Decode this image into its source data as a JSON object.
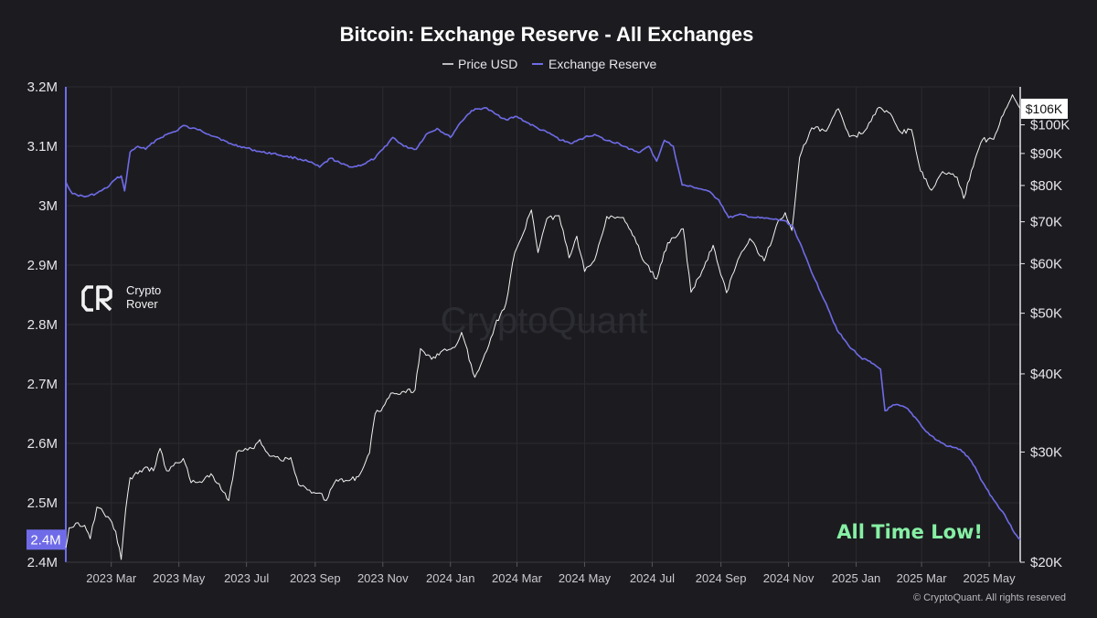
{
  "colors": {
    "background": "#1c1c20",
    "reserve": "#6f6be8",
    "price": "#f2f2f2",
    "annotation": "#86f0a4",
    "grid": "#2a2a30"
  },
  "brand": {
    "name_line1": "Crypto",
    "name_line2": "Rover",
    "icon": "cr-logo-icon"
  },
  "watermark": "CryptoQuant",
  "copyright": "© CryptoQuant. All rights reserved",
  "annotation": "All Time Low!",
  "chart_data": {
    "type": "line",
    "title": "Bitcoin: Exchange Reserve - All Exchanges",
    "legend": {
      "position": "top-center",
      "entries": [
        "Price USD",
        "Exchange Reserve"
      ]
    },
    "grid": true,
    "x_ticks": [
      "2023 Mar",
      "2023 May",
      "2023 Jul",
      "2023 Sep",
      "2023 Nov",
      "2024 Jan",
      "2024 Mar",
      "2024 May",
      "2024 Jul",
      "2024 Sep",
      "2024 Nov",
      "2025 Jan",
      "2025 Mar",
      "2025 May"
    ],
    "x_range": [
      "2023-01-19",
      "2025-05-29"
    ],
    "y_left": {
      "label": "",
      "range": [
        2400000,
        3200000
      ],
      "ticks": [
        {
          "value": 2400000,
          "label": "2.4M"
        },
        {
          "value": 2500000,
          "label": "2.5M"
        },
        {
          "value": 2600000,
          "label": "2.6M"
        },
        {
          "value": 2700000,
          "label": "2.7M"
        },
        {
          "value": 2800000,
          "label": "2.8M"
        },
        {
          "value": 2900000,
          "label": "2.9M"
        },
        {
          "value": 3000000,
          "label": "3M"
        },
        {
          "value": 3100000,
          "label": "3.1M"
        },
        {
          "value": 3200000,
          "label": "3.2M"
        }
      ],
      "current_badge": "2.4M"
    },
    "y_right": {
      "label": "",
      "scale": "log",
      "range": [
        20000,
        115000
      ],
      "ticks": [
        {
          "value": 20000,
          "label": "$20K"
        },
        {
          "value": 30000,
          "label": "$30K"
        },
        {
          "value": 40000,
          "label": "$40K"
        },
        {
          "value": 50000,
          "label": "$50K"
        },
        {
          "value": 60000,
          "label": "$60K"
        },
        {
          "value": 70000,
          "label": "$70K"
        },
        {
          "value": 80000,
          "label": "$80K"
        },
        {
          "value": 90000,
          "label": "$90K"
        },
        {
          "value": 100000,
          "label": "$100K"
        }
      ],
      "current_badge": "$106K"
    },
    "series": [
      {
        "name": "Exchange Reserve",
        "axis": "left",
        "points": [
          [
            "2023-01-19",
            3040000
          ],
          [
            "2023-01-25",
            3020000
          ],
          [
            "2023-02-05",
            3015000
          ],
          [
            "2023-02-15",
            3020000
          ],
          [
            "2023-02-25",
            3030000
          ],
          [
            "2023-03-05",
            3045000
          ],
          [
            "2023-03-10",
            3050000
          ],
          [
            "2023-03-13",
            3025000
          ],
          [
            "2023-03-18",
            3090000
          ],
          [
            "2023-03-25",
            3100000
          ],
          [
            "2023-04-01",
            3095000
          ],
          [
            "2023-04-10",
            3110000
          ],
          [
            "2023-04-20",
            3120000
          ],
          [
            "2023-04-28",
            3125000
          ],
          [
            "2023-05-05",
            3135000
          ],
          [
            "2023-05-12",
            3130000
          ],
          [
            "2023-05-20",
            3128000
          ],
          [
            "2023-05-28",
            3120000
          ],
          [
            "2023-06-05",
            3115000
          ],
          [
            "2023-06-15",
            3105000
          ],
          [
            "2023-06-25",
            3100000
          ],
          [
            "2023-07-05",
            3095000
          ],
          [
            "2023-07-15",
            3090000
          ],
          [
            "2023-07-25",
            3088000
          ],
          [
            "2023-08-05",
            3083000
          ],
          [
            "2023-08-15",
            3080000
          ],
          [
            "2023-08-25",
            3075000
          ],
          [
            "2023-09-05",
            3065000
          ],
          [
            "2023-09-15",
            3080000
          ],
          [
            "2023-09-25",
            3070000
          ],
          [
            "2023-10-05",
            3065000
          ],
          [
            "2023-10-15",
            3070000
          ],
          [
            "2023-10-25",
            3080000
          ],
          [
            "2023-11-01",
            3095000
          ],
          [
            "2023-11-10",
            3115000
          ],
          [
            "2023-11-20",
            3100000
          ],
          [
            "2023-12-01",
            3095000
          ],
          [
            "2023-12-10",
            3120000
          ],
          [
            "2023-12-20",
            3130000
          ],
          [
            "2024-01-01",
            3115000
          ],
          [
            "2024-01-10",
            3140000
          ],
          [
            "2024-01-20",
            3160000
          ],
          [
            "2024-02-01",
            3165000
          ],
          [
            "2024-02-10",
            3155000
          ],
          [
            "2024-02-20",
            3145000
          ],
          [
            "2024-03-01",
            3150000
          ],
          [
            "2024-03-10",
            3140000
          ],
          [
            "2024-03-20",
            3130000
          ],
          [
            "2024-04-01",
            3120000
          ],
          [
            "2024-04-10",
            3110000
          ],
          [
            "2024-04-20",
            3105000
          ],
          [
            "2024-05-01",
            3115000
          ],
          [
            "2024-05-10",
            3120000
          ],
          [
            "2024-05-20",
            3110000
          ],
          [
            "2024-06-01",
            3105000
          ],
          [
            "2024-06-10",
            3095000
          ],
          [
            "2024-06-20",
            3090000
          ],
          [
            "2024-06-28",
            3100000
          ],
          [
            "2024-07-05",
            3075000
          ],
          [
            "2024-07-12",
            3110000
          ],
          [
            "2024-07-20",
            3100000
          ],
          [
            "2024-07-28",
            3035000
          ],
          [
            "2024-08-10",
            3030000
          ],
          [
            "2024-08-20",
            3025000
          ],
          [
            "2024-08-30",
            3010000
          ],
          [
            "2024-09-08",
            2980000
          ],
          [
            "2024-09-20",
            2985000
          ],
          [
            "2024-10-01",
            2980000
          ],
          [
            "2024-10-15",
            2978000
          ],
          [
            "2024-10-28",
            2975000
          ],
          [
            "2024-11-05",
            2965000
          ],
          [
            "2024-11-15",
            2920000
          ],
          [
            "2024-11-25",
            2875000
          ],
          [
            "2024-12-05",
            2835000
          ],
          [
            "2024-12-15",
            2790000
          ],
          [
            "2024-12-25",
            2765000
          ],
          [
            "2025-01-05",
            2745000
          ],
          [
            "2025-01-15",
            2735000
          ],
          [
            "2025-01-23",
            2725000
          ],
          [
            "2025-01-27",
            2655000
          ],
          [
            "2025-02-05",
            2665000
          ],
          [
            "2025-02-15",
            2660000
          ],
          [
            "2025-02-25",
            2640000
          ],
          [
            "2025-03-05",
            2620000
          ],
          [
            "2025-03-15",
            2605000
          ],
          [
            "2025-03-25",
            2595000
          ],
          [
            "2025-04-05",
            2590000
          ],
          [
            "2025-04-15",
            2570000
          ],
          [
            "2025-04-25",
            2535000
          ],
          [
            "2025-05-05",
            2505000
          ],
          [
            "2025-05-15",
            2480000
          ],
          [
            "2025-05-22",
            2455000
          ],
          [
            "2025-05-29",
            2438000
          ]
        ]
      },
      {
        "name": "Price USD",
        "axis": "right",
        "points": [
          [
            "2023-01-19",
            21100
          ],
          [
            "2023-01-22",
            22700
          ],
          [
            "2023-01-28",
            23100
          ],
          [
            "2023-02-05",
            22900
          ],
          [
            "2023-02-10",
            21800
          ],
          [
            "2023-02-16",
            24500
          ],
          [
            "2023-02-22",
            24000
          ],
          [
            "2023-02-28",
            23400
          ],
          [
            "2023-03-05",
            22400
          ],
          [
            "2023-03-10",
            20200
          ],
          [
            "2023-03-14",
            24300
          ],
          [
            "2023-03-18",
            27300
          ],
          [
            "2023-03-25",
            27700
          ],
          [
            "2023-04-01",
            28400
          ],
          [
            "2023-04-08",
            28000
          ],
          [
            "2023-04-14",
            30400
          ],
          [
            "2023-04-20",
            28000
          ],
          [
            "2023-04-26",
            28500
          ],
          [
            "2023-05-05",
            29300
          ],
          [
            "2023-05-12",
            26800
          ],
          [
            "2023-05-20",
            26900
          ],
          [
            "2023-05-30",
            27700
          ],
          [
            "2023-06-10",
            25900
          ],
          [
            "2023-06-15",
            25100
          ],
          [
            "2023-06-22",
            29900
          ],
          [
            "2023-06-30",
            30400
          ],
          [
            "2023-07-06",
            30400
          ],
          [
            "2023-07-13",
            31400
          ],
          [
            "2023-07-20",
            29900
          ],
          [
            "2023-07-31",
            29200
          ],
          [
            "2023-08-10",
            29400
          ],
          [
            "2023-08-17",
            26600
          ],
          [
            "2023-08-25",
            26100
          ],
          [
            "2023-09-05",
            25800
          ],
          [
            "2023-09-11",
            25100
          ],
          [
            "2023-09-20",
            27100
          ],
          [
            "2023-09-30",
            27000
          ],
          [
            "2023-10-10",
            27400
          ],
          [
            "2023-10-20",
            29900
          ],
          [
            "2023-10-25",
            34500
          ],
          [
            "2023-11-01",
            35400
          ],
          [
            "2023-11-10",
            37300
          ],
          [
            "2023-11-20",
            37500
          ],
          [
            "2023-11-30",
            37700
          ],
          [
            "2023-12-05",
            43900
          ],
          [
            "2023-12-15",
            42200
          ],
          [
            "2023-12-25",
            43600
          ],
          [
            "2024-01-05",
            44100
          ],
          [
            "2024-01-11",
            46600
          ],
          [
            "2024-01-23",
            39500
          ],
          [
            "2024-02-01",
            43000
          ],
          [
            "2024-02-10",
            47700
          ],
          [
            "2024-02-20",
            51800
          ],
          [
            "2024-02-28",
            62500
          ],
          [
            "2024-03-05",
            66000
          ],
          [
            "2024-03-14",
            73100
          ],
          [
            "2024-03-20",
            62500
          ],
          [
            "2024-03-28",
            70800
          ],
          [
            "2024-04-08",
            71600
          ],
          [
            "2024-04-17",
            61300
          ],
          [
            "2024-04-24",
            66400
          ],
          [
            "2024-05-01",
            58300
          ],
          [
            "2024-05-10",
            60800
          ],
          [
            "2024-05-21",
            71400
          ],
          [
            "2024-06-05",
            71100
          ],
          [
            "2024-06-15",
            66200
          ],
          [
            "2024-06-24",
            60300
          ],
          [
            "2024-07-05",
            56700
          ],
          [
            "2024-07-15",
            64800
          ],
          [
            "2024-07-29",
            68200
          ],
          [
            "2024-08-05",
            54000
          ],
          [
            "2024-08-15",
            58400
          ],
          [
            "2024-08-25",
            64200
          ],
          [
            "2024-09-06",
            53900
          ],
          [
            "2024-09-18",
            61700
          ],
          [
            "2024-09-27",
            65800
          ],
          [
            "2024-10-10",
            60600
          ],
          [
            "2024-10-21",
            69000
          ],
          [
            "2024-10-29",
            72400
          ],
          [
            "2024-11-04",
            67800
          ],
          [
            "2024-11-11",
            88700
          ],
          [
            "2024-11-22",
            98900
          ],
          [
            "2024-12-05",
            97700
          ],
          [
            "2024-12-16",
            106100
          ],
          [
            "2024-12-26",
            95700
          ],
          [
            "2025-01-07",
            96900
          ],
          [
            "2025-01-20",
            106100
          ],
          [
            "2025-01-30",
            104700
          ],
          [
            "2025-02-10",
            97400
          ],
          [
            "2025-02-20",
            98200
          ],
          [
            "2025-02-28",
            84400
          ],
          [
            "2025-03-10",
            78600
          ],
          [
            "2025-03-20",
            84200
          ],
          [
            "2025-04-02",
            82500
          ],
          [
            "2025-04-08",
            76300
          ],
          [
            "2025-04-15",
            84500
          ],
          [
            "2025-04-25",
            94700
          ],
          [
            "2025-05-05",
            94800
          ],
          [
            "2025-05-12",
            102800
          ],
          [
            "2025-05-22",
            111700
          ],
          [
            "2025-05-29",
            106100
          ]
        ]
      }
    ]
  }
}
